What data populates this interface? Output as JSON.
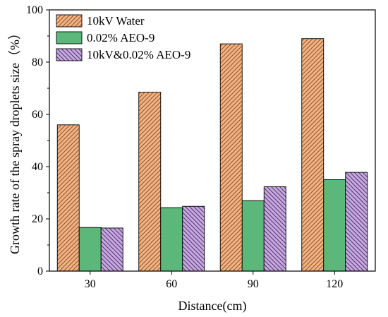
{
  "chart_data": {
    "type": "bar",
    "categories": [
      "30",
      "60",
      "90",
      "120"
    ],
    "series": [
      {
        "name": "10kV Water",
        "values": [
          56,
          68.5,
          87,
          89
        ],
        "color": "#f4b183",
        "pattern": "diagonal-up"
      },
      {
        "name": "0.02% AEO-9",
        "values": [
          16.7,
          24.3,
          27,
          35
        ],
        "color": "#5cb87a",
        "pattern": "solid"
      },
      {
        "name": "10kV&0.02% AEO-9",
        "values": [
          16.5,
          24.8,
          32.3,
          37.8
        ],
        "color": "#c9a7e0",
        "pattern": "diagonal-down"
      }
    ],
    "xlabel": "Distance(cm)",
    "ylabel": "Growth rate of the spray droplets size（%）",
    "ylim": [
      0,
      100
    ],
    "yticks": [
      0,
      20,
      40,
      60,
      80,
      100
    ],
    "legend_position": "top-left",
    "grid": false
  }
}
